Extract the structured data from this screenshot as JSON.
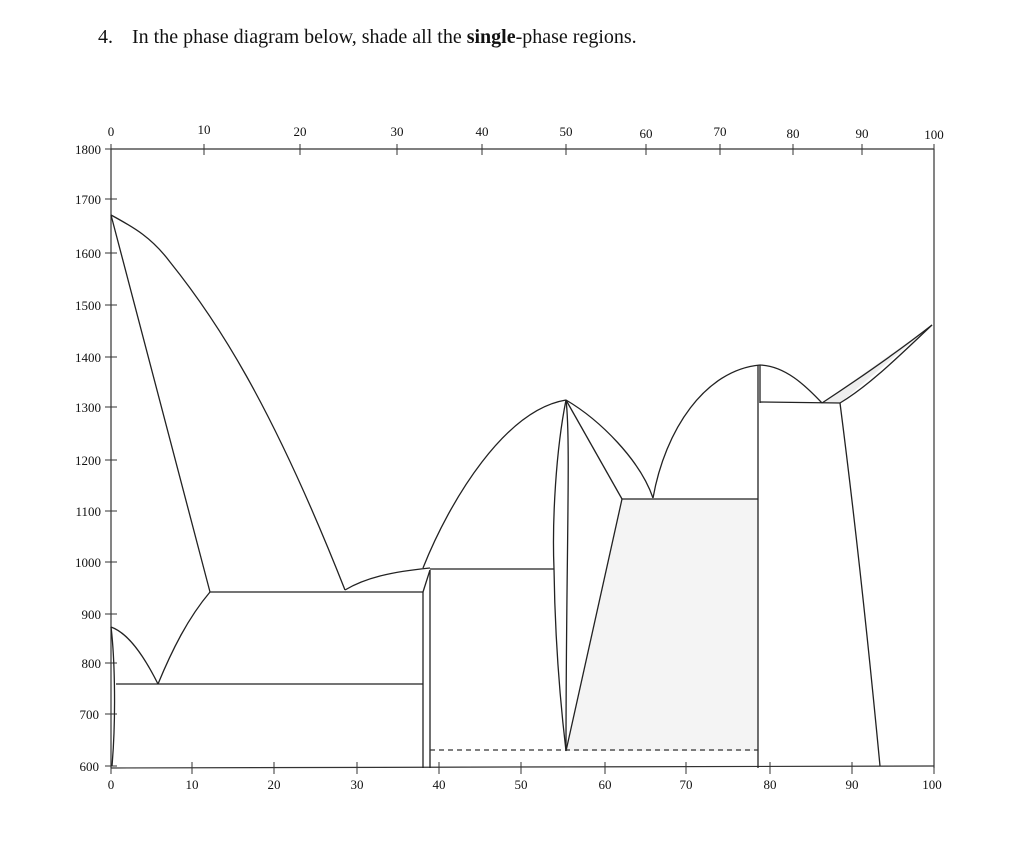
{
  "question": {
    "number": "4.",
    "text_before": "In the phase diagram below, shade all the ",
    "emphasis": "single",
    "text_after": "-phase regions."
  },
  "axes": {
    "top_ticks": [
      "0",
      "10",
      "20",
      "30",
      "40",
      "50",
      "60",
      "70",
      "80",
      "90",
      "100"
    ],
    "bottom_ticks": [
      "0",
      "10",
      "20",
      "30",
      "40",
      "50",
      "60",
      "70",
      "80",
      "90",
      "100"
    ],
    "left_ticks": [
      "1800",
      "1700",
      "1600",
      "1500",
      "1400",
      "1300",
      "1200",
      "1100",
      "1000",
      "900",
      "800",
      "700",
      "600"
    ]
  },
  "colors": {
    "line": "#222222",
    "shade": "#f2f2f2"
  }
}
